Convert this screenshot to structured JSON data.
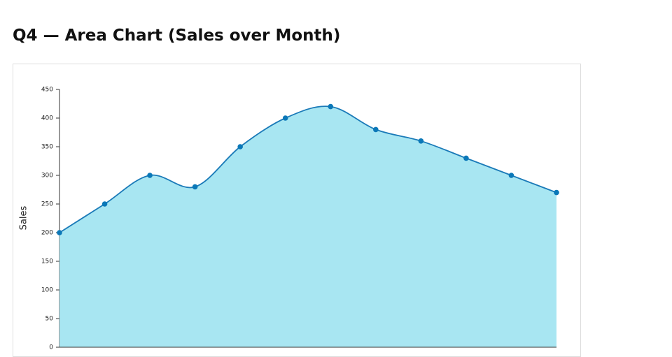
{
  "chart_data": {
    "type": "area",
    "title": "Q4 — Area Chart (Sales over Month)",
    "y_label": "Sales",
    "categories": [
      null,
      null,
      null,
      null,
      null,
      null,
      null,
      null,
      null,
      null,
      null,
      null
    ],
    "values": [
      200,
      250,
      300,
      280,
      350,
      400,
      420,
      380,
      360,
      330,
      300,
      270
    ],
    "fill_color": "#a8e6f2",
    "line_color": "#1a7ab8",
    "point_color": "#0b78b8",
    "ylim": [
      0,
      450
    ],
    "yticks": [
      0,
      50,
      100,
      150,
      200,
      250,
      300,
      350,
      400,
      450
    ]
  }
}
